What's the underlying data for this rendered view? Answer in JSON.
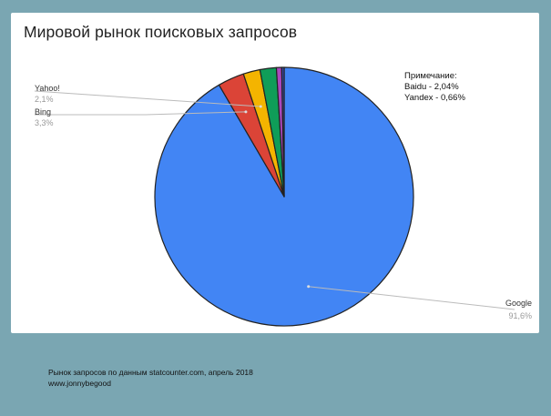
{
  "chart_data": {
    "type": "pie",
    "title": "Мировой рынок поисковых запросов",
    "slices": [
      {
        "name": "Google",
        "value": 91.6,
        "label_value": "91,6%",
        "color": "#4285f4"
      },
      {
        "name": "Bing",
        "value": 3.3,
        "label_value": "3,3%",
        "color": "#db4437"
      },
      {
        "name": "Yahoo!",
        "value": 2.1,
        "label_value": "2,1%",
        "color": "#f4b400"
      },
      {
        "name": "Baidu",
        "value": 2.04,
        "label_value": "",
        "color": "#0f9d58"
      },
      {
        "name": "Yandex",
        "value": 0.66,
        "label_value": "",
        "color": "#ab47bc"
      },
      {
        "name": "",
        "value": 0.3,
        "label_value": "",
        "color": "#3949ab"
      }
    ],
    "note": {
      "heading": "Примечание:",
      "lines": [
        "Baidu - 2,04%",
        "Yandex - 0,66%"
      ]
    }
  },
  "footer": {
    "line1": "Рынок запросов по данным statcounter.com, апрель 2018",
    "line2": "www.jonnybegood"
  },
  "colors": {
    "background": "#7aa6b2",
    "card": "#ffffff"
  }
}
